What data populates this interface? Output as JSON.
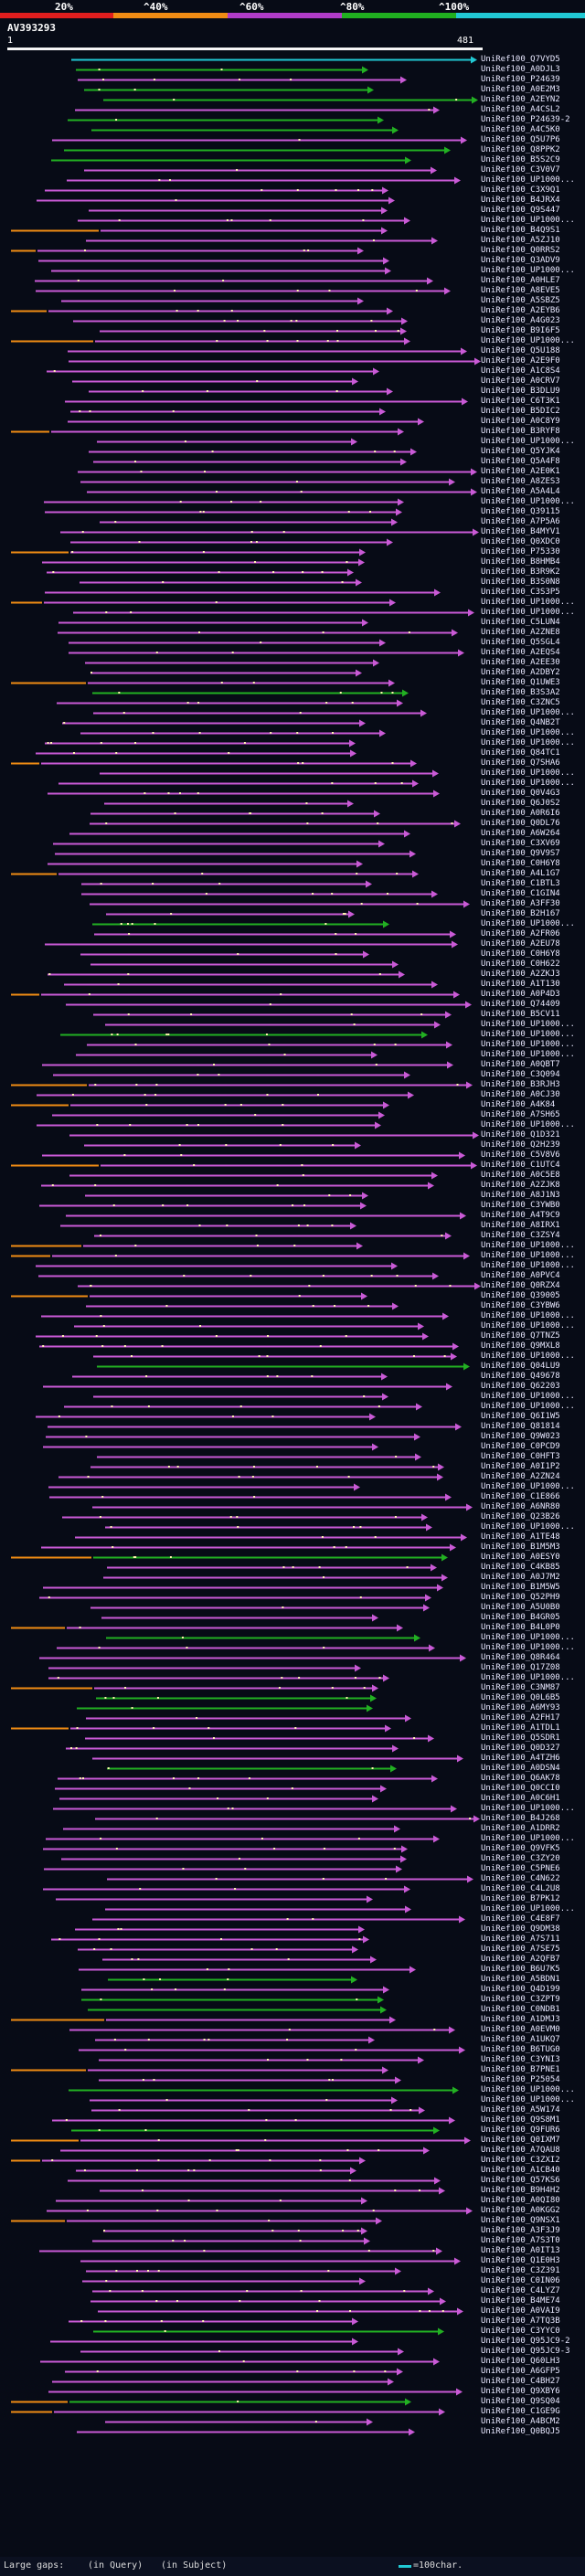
{
  "legend": {
    "ticks": [
      "20%",
      "^40%",
      "^60%",
      "^80%",
      "^100%"
    ],
    "colors": [
      "#e01e1e",
      "#f08c14",
      "#b03cc8",
      "#20b020",
      "#21c9d4"
    ]
  },
  "query": {
    "name": "AV393293",
    "start": "1",
    "end": "481"
  },
  "hits": [
    "UniRef100_Q7VYD5",
    "UniRef100_A0DJL3",
    "UniRef100_P24639",
    "UniRef100_A0E2M3",
    "UniRef100_A2EYN2",
    "UniRef100_A4CSL2",
    "UniRef100_P24639-2",
    "UniRef100_A4C5K0",
    "UniRef100_Q5U7P6",
    "UniRef100_Q8PPK2",
    "UniRef100_B5S2C9",
    "UniRef100_C3V0V7",
    "UniRef100_UP1000...",
    "UniRef100_C3X9Q1",
    "UniRef100_B4JRX4",
    "UniRef100_Q9S447",
    "UniRef100_UP1000...",
    "UniRef100_B4Q9S1",
    "UniRef100_A5ZJ10",
    "UniRef100_Q0RRS2",
    "UniRef100_Q3ADV9",
    "UniRef100_UP1000...",
    "UniRef100_A0HLE7",
    "UniRef100_A8EVE5",
    "UniRef100_A5SBZ5",
    "UniRef100_A2EYB6",
    "UniRef100_A4G023",
    "UniRef100_B9I6F5",
    "UniRef100_UP1000...",
    "UniRef100_Q5U188",
    "UniRef100_A2E9F0",
    "UniRef100_A1C8S4",
    "UniRef100_A0CRV7",
    "UniRef100_B3DLU9",
    "UniRef100_C6T3K1",
    "UniRef100_B5DIC2",
    "UniRef100_A0C8Y9",
    "UniRef100_B3RYF8",
    "UniRef100_UP1000...",
    "UniRef100_Q5YJK4",
    "UniRef100_Q5A4F8",
    "UniRef100_A2E0K1",
    "UniRef100_A8ZES3",
    "UniRef100_A5A4L4",
    "UniRef100_UP1000...",
    "UniRef100_Q39115",
    "UniRef100_A7P5A6",
    "UniRef100_B4MYV1",
    "UniRef100_Q0XDC0",
    "UniRef100_P75330",
    "UniRef100_B8HMB4",
    "UniRef100_B3R9K2",
    "UniRef100_B3S0N8",
    "UniRef100_C3S3P5",
    "UniRef100_UP1000...",
    "UniRef100_UP1000...",
    "UniRef100_C5LUN4",
    "UniRef100_A2ZNE8",
    "UniRef100_Q5SGL4",
    "UniRef100_A2EQS4",
    "UniRef100_A2EE30",
    "UniRef100_A2DBY2",
    "UniRef100_Q1UWE3",
    "UniRef100_B3S3A2",
    "UniRef100_C3ZNC5",
    "UniRef100_UP1000...",
    "UniRef100_Q4NB2T",
    "UniRef100_UP1000...",
    "UniRef100_UP1000...",
    "UniRef100_Q84TC1",
    "UniRef100_Q7SHA6",
    "UniRef100_UP1000...",
    "UniRef100_UP1000...",
    "UniRef100_Q0V4G3",
    "UniRef100_Q6J0S2",
    "UniRef100_A0R6I6",
    "UniRef100_Q0DL76",
    "UniRef100_A6W264",
    "UniRef100_C3XV69",
    "UniRef100_Q9V9S7",
    "UniRef100_C0H6Y8",
    "UniRef100_A4L1G7",
    "UniRef100_C1BTL3",
    "UniRef100_C1GIN4",
    "UniRef100_A3FF30",
    "UniRef100_B2H167",
    "UniRef100_UP1000...",
    "UniRef100_A2FR06",
    "UniRef100_A2EU78",
    "UniRef100_C0H6Y8",
    "UniRef100_C0H622",
    "UniRef100_A2ZKJ3",
    "UniRef100_A1T130",
    "UniRef100_A0P4D3",
    "UniRef100_Q74409",
    "UniRef100_B5CV11",
    "UniRef100_UP1000...",
    "UniRef100_UP1000...",
    "UniRef100_UP1000...",
    "UniRef100_UP1000...",
    "UniRef100_A0QBT7",
    "UniRef100_C3Q094",
    "UniRef100_B3RJH3",
    "UniRef100_A0CJ30",
    "UniRef100_A4K84",
    "UniRef100_A7SH65",
    "UniRef100_UP1000...",
    "UniRef100_Q1D321",
    "UniRef100_Q2H239",
    "UniRef100_C5V8V6",
    "UniRef100_C1UTC4",
    "UniRef100_A0C5E8",
    "UniRef100_A2ZJK8",
    "UniRef100_A8J1N3",
    "UniRef100_C3YWB0",
    "UniRef100_A4T9C9",
    "UniRef100_A8IRX1",
    "UniRef100_C3ZSY4",
    "UniRef100_UP1000...",
    "UniRef100_UP1000...",
    "UniRef100_UP1000...",
    "UniRef100_A0PVC4",
    "UniRef100_Q0RZX4",
    "UniRef100_Q39005",
    "UniRef100_C3YBW6",
    "UniRef100_UP1000...",
    "UniRef100_UP1000...",
    "UniRef100_Q7TNZ5",
    "UniRef100_Q9MXL8",
    "UniRef100_UP1000...",
    "UniRef100_Q04LU9",
    "UniRef100_Q49678",
    "UniRef100_Q62203",
    "UniRef100_UP1000...",
    "UniRef100_UP1000...",
    "UniRef100_Q6I1W5",
    "UniRef100_Q81814",
    "UniRef100_Q9W023",
    "UniRef100_C0PCD9",
    "UniRef100_C0HFT3",
    "UniRef100_A0I1P2",
    "UniRef100_A2ZN24",
    "UniRef100_UP1000...",
    "UniRef100_C1E866",
    "UniRef100_A6NR80",
    "UniRef100_Q23B26",
    "UniRef100_UP1000...",
    "UniRef100_A1TE48",
    "UniRef100_B1M5M3",
    "UniRef100_A0ESY0",
    "UniRef100_C4KB85",
    "UniRef100_A0J7M2",
    "UniRef100_B1M5W5",
    "UniRef100_Q52PH9",
    "UniRef100_A5U0B0",
    "UniRef100_B4GR05",
    "UniRef100_B4L0P0",
    "UniRef100_UP1000...",
    "UniRef100_UP1000...",
    "UniRef100_Q8R464",
    "UniRef100_Q17Z08",
    "UniRef100_UP1000...",
    "UniRef100_C3NM87",
    "UniRef100_Q0L6B5",
    "UniRef100_A6MY93",
    "UniRef100_A2FH17",
    "UniRef100_A1TDL1",
    "UniRef100_Q5SDR1",
    "UniRef100_Q0D327",
    "UniRef100_A4TZH6",
    "UniRef100_A0DSN4",
    "UniRef100_Q6AK78",
    "UniRef100_Q0CCI0",
    "UniRef100_A0C6H1",
    "UniRef100_UP1000...",
    "UniRef100_B4J268",
    "UniRef100_A1DRR2",
    "UniRef100_UP1000...",
    "UniRef100_Q9VFK5",
    "UniRef100_C3ZY20",
    "UniRef100_C5PNE6",
    "UniRef100_C4N622",
    "UniRef100_C4L2U8",
    "UniRef100_B7PK12",
    "UniRef100_UP1000...",
    "UniRef100_C4E8F7",
    "UniRef100_Q9DM38",
    "UniRef100_A7S711",
    "UniRef100_A7SE75",
    "UniRef100_A2QFB7",
    "UniRef100_B6U7K5",
    "UniRef100_A5BDN1",
    "UniRef100_Q4D199",
    "UniRef100_C3ZPT9",
    "UniRef100_C0NDB1",
    "UniRef100_A1DMJ3",
    "UniRef100_A0EVM0",
    "UniRef100_A1UKQ7",
    "UniRef100_B6TUG0",
    "UniRef100_C3YNI3",
    "UniRef100_B7PNE1",
    "UniRef100_P25054",
    "UniRef100_UP1000...",
    "UniRef100_UP1000...",
    "UniRef100_A5W174",
    "UniRef100_Q9S8M1",
    "UniRef100_Q9FUR6",
    "UniRef100_Q0IXM7",
    "UniRef100_A7QAU8",
    "UniRef100_C3ZXI2",
    "UniRef100_A1CB40",
    "UniRef100_Q57KS6",
    "UniRef100_B9H4H2",
    "UniRef100_A0QI80",
    "UniRef100_A0KGG2",
    "UniRef100_Q9NSX1",
    "UniRef100_A3F3J9",
    "UniRef100_A7S3T0",
    "UniRef100_A0IT13",
    "UniRef100_Q1E0H3",
    "UniRef100_C3Z391",
    "UniRef100_C0IN06",
    "UniRef100_C4LYZ7",
    "UniRef100_B4ME74",
    "UniRef100_A0VAI9",
    "UniRef100_A7TQ3B",
    "UniRef100_C3YYC0",
    "UniRef100_Q95JC9-2",
    "UniRef100_Q95JC9-3",
    "UniRef100_Q60LH3",
    "UniRef100_A6GFP5",
    "UniRef100_C4BH27",
    "UniRef100_Q9XBY6",
    "UniRef100_Q9SQ04",
    "UniRef100_C1GE9G",
    "UniRef100_A4BCM2",
    "UniRef100_Q0BQJ5"
  ],
  "footer": {
    "large_gaps": "Large gaps:",
    "in_query": "(in Query)",
    "in_subject": "(in Subject)",
    "scale": "=100char."
  }
}
